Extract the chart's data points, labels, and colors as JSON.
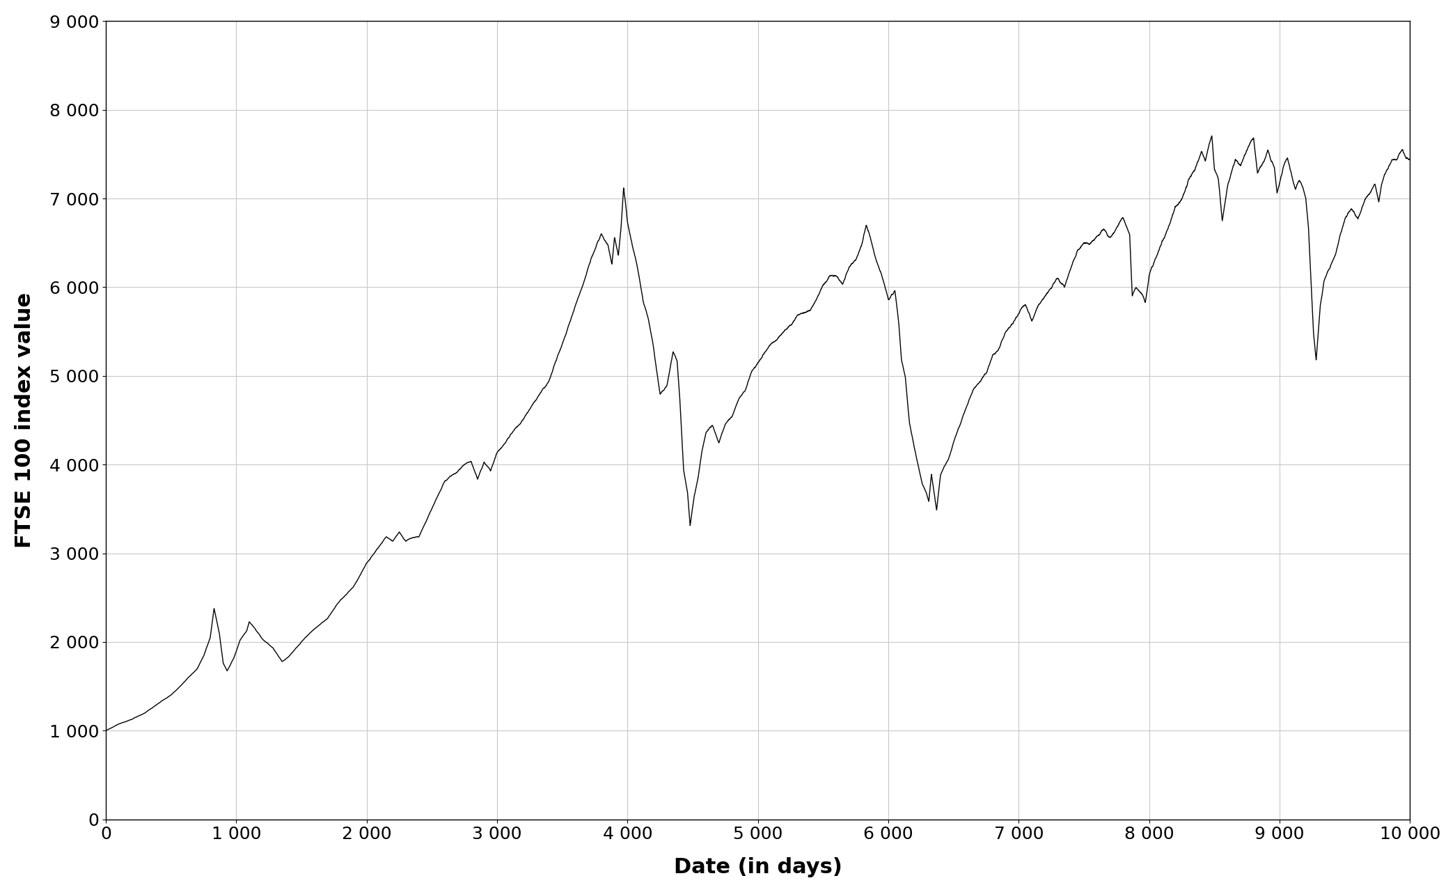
{
  "title": "",
  "xlabel": "Date (in days)",
  "ylabel": "FTSE 100 index value",
  "xlim": [
    0,
    10000
  ],
  "ylim": [
    0,
    9000
  ],
  "xticks": [
    0,
    1000,
    2000,
    3000,
    4000,
    5000,
    6000,
    7000,
    8000,
    9000,
    10000
  ],
  "yticks": [
    0,
    1000,
    2000,
    3000,
    4000,
    5000,
    6000,
    7000,
    8000,
    9000
  ],
  "xtick_labels": [
    "0",
    "1 000",
    "2 000",
    "3 000",
    "4 000",
    "5 000",
    "6 000",
    "7 000",
    "8 000",
    "9 000",
    "10 000"
  ],
  "ytick_labels": [
    "0",
    "1 000",
    "2 000",
    "3 000",
    "4 000",
    "5 000",
    "6 000",
    "7 000",
    "8 000",
    "9 000"
  ],
  "line_color": "#000000",
  "line_width": 1.0,
  "background_color": "#ffffff",
  "grid_color": "#c8c8c8",
  "xlabel_fontsize": 22,
  "ylabel_fontsize": 22,
  "tick_fontsize": 18
}
